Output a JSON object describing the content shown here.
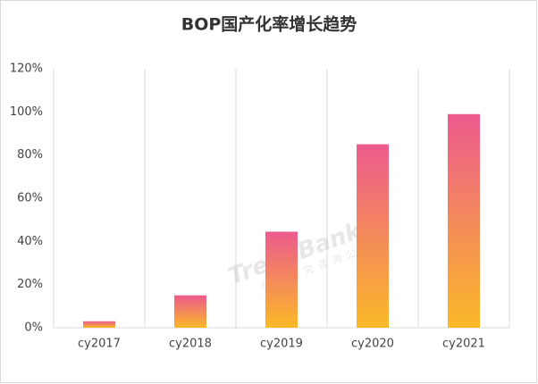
{
  "chart_data": {
    "type": "bar",
    "title": "BOP国产化率增长趋势",
    "categories": [
      "cy2017",
      "cy2018",
      "cy2019",
      "cy2020",
      "cy2021"
    ],
    "values": [
      3,
      15,
      44.5,
      85,
      99
    ],
    "gradient": [
      "#ec5a8e",
      "#fbb928"
    ],
    "ylim": [
      0,
      120
    ],
    "yticks": [
      {
        "value": 0,
        "label": "0%"
      },
      {
        "value": 20,
        "label": "20%"
      },
      {
        "value": 40,
        "label": "40%"
      },
      {
        "value": 60,
        "label": "60%"
      },
      {
        "value": 80,
        "label": "80%"
      },
      {
        "value": 100,
        "label": "100%"
      },
      {
        "value": 120,
        "label": "120%"
      }
    ],
    "grid": "x",
    "watermark": {
      "text": "TrendBank",
      "subtext": "产业研究咨询公司"
    }
  }
}
